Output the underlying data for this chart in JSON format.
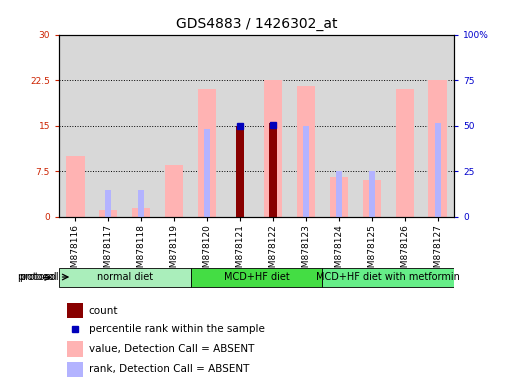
{
  "title": "GDS4883 / 1426302_at",
  "samples": [
    "GSM878116",
    "GSM878117",
    "GSM878118",
    "GSM878119",
    "GSM878120",
    "GSM878121",
    "GSM878122",
    "GSM878123",
    "GSM878124",
    "GSM878125",
    "GSM878126",
    "GSM878127"
  ],
  "value_absent": [
    10.0,
    1.2,
    1.5,
    8.5,
    21.0,
    null,
    22.5,
    21.5,
    6.5,
    6.0,
    21.0,
    22.5
  ],
  "rank_absent": [
    null,
    4.5,
    4.5,
    null,
    14.5,
    null,
    null,
    15.0,
    7.5,
    7.5,
    null,
    15.5
  ],
  "count": [
    null,
    null,
    null,
    null,
    null,
    15.0,
    15.5,
    null,
    null,
    null,
    null,
    null
  ],
  "percentile": [
    null,
    null,
    null,
    null,
    null,
    15.0,
    15.2,
    null,
    null,
    null,
    null,
    null
  ],
  "left_y_ticks": [
    0,
    7.5,
    15,
    22.5,
    30
  ],
  "right_y_ticks": [
    0,
    25,
    50,
    75,
    100
  ],
  "ylim": [
    0,
    30
  ],
  "protocols": [
    {
      "label": "normal diet",
      "start": 0,
      "end": 3,
      "color": "#aaeebb"
    },
    {
      "label": "MCD+HF diet",
      "start": 4,
      "end": 7,
      "color": "#44dd44"
    },
    {
      "label": "MCD+HF diet with metformin",
      "start": 8,
      "end": 11,
      "color": "#66ee88"
    }
  ],
  "color_value_absent": "#ffb3b3",
  "color_rank_absent": "#b3b3ff",
  "color_count": "#880000",
  "color_percentile": "#0000bb",
  "title_fontsize": 10,
  "tick_fontsize": 6.5,
  "legend_fontsize": 7.5,
  "protocol_fontsize": 7.5,
  "left_axis_color": "#cc2200",
  "right_axis_color": "#0000cc",
  "col_bg_color": "#d8d8d8"
}
